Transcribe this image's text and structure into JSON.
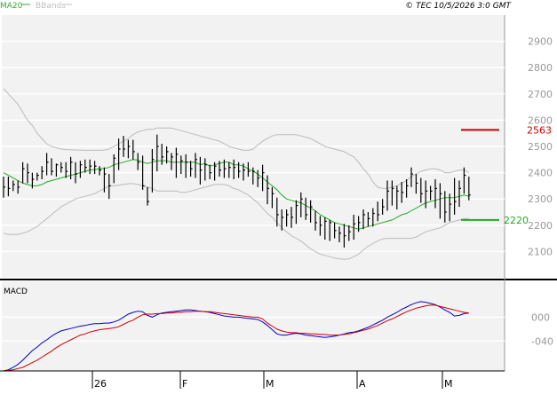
{
  "header": {
    "legend": [
      {
        "name": "MA20",
        "color": "#33aa33"
      },
      {
        "name": "BBands",
        "color": "#c0c0c0"
      }
    ],
    "credit": "© TEC 10/5/2026 3:0 GMT"
  },
  "colors": {
    "price_bars": "#000000",
    "ma20": "#22aa22",
    "bbands": "#bbbbbb",
    "panel_bg": "#f2f2f2",
    "grid": "#ffffff",
    "resistance": "#cc0000",
    "support": "#22aa22",
    "macd_line": "#0000cc",
    "signal_line": "#cc0000"
  },
  "chart_data": [
    {
      "type": "ohlc",
      "name": "price",
      "ylim": [
        2000,
        3000
      ],
      "yticks": [
        "2100",
        "2200",
        "2300",
        "2400",
        "2500",
        "2600",
        "2700",
        "2800",
        "2900"
      ],
      "x_labels": [
        "26",
        "F",
        "M",
        "A",
        "M"
      ],
      "close": [
        2345,
        2340,
        2355,
        2345,
        2415,
        2400,
        2375,
        2390,
        2405,
        2440,
        2405,
        2430,
        2420,
        2405,
        2440,
        2395,
        2430,
        2420,
        2425,
        2425,
        2410,
        2395,
        2350,
        2455,
        2490,
        2490,
        2500,
        2480,
        2440,
        2350,
        2290,
        2450,
        2500,
        2460,
        2480,
        2460,
        2470,
        2445,
        2440,
        2415,
        2450,
        2410,
        2430,
        2400,
        2425,
        2410,
        2415,
        2420,
        2420,
        2405,
        2410,
        2405,
        2405,
        2380,
        2400,
        2340,
        2320,
        2240,
        2230,
        2240,
        2230,
        2275,
        2300,
        2240,
        2270,
        2210,
        2200,
        2215,
        2210,
        2180,
        2170,
        2160,
        2175,
        2205,
        2210,
        2240,
        2225,
        2245,
        2240,
        2270,
        2330,
        2340,
        2330,
        2325,
        2350,
        2395,
        2360,
        2320,
        2330,
        2330,
        2340,
        2320,
        2250,
        2280,
        2290,
        2340,
        2390,
        2315
      ],
      "high": [
        2385,
        2385,
        2370,
        2370,
        2440,
        2435,
        2400,
        2400,
        2425,
        2475,
        2455,
        2435,
        2440,
        2440,
        2460,
        2440,
        2445,
        2450,
        2450,
        2445,
        2425,
        2420,
        2395,
        2470,
        2530,
        2540,
        2525,
        2525,
        2475,
        2465,
        2345,
        2490,
        2545,
        2510,
        2500,
        2475,
        2495,
        2465,
        2470,
        2445,
        2475,
        2460,
        2455,
        2430,
        2440,
        2445,
        2450,
        2440,
        2450,
        2440,
        2435,
        2440,
        2420,
        2410,
        2430,
        2390,
        2345,
        2305,
        2260,
        2260,
        2270,
        2295,
        2325,
        2305,
        2295,
        2255,
        2235,
        2230,
        2220,
        2210,
        2195,
        2205,
        2200,
        2240,
        2235,
        2260,
        2250,
        2265,
        2290,
        2300,
        2370,
        2370,
        2350,
        2365,
        2375,
        2420,
        2395,
        2380,
        2370,
        2350,
        2375,
        2360,
        2330,
        2320,
        2380,
        2370,
        2420,
        2385
      ],
      "low": [
        2305,
        2310,
        2330,
        2320,
        2360,
        2360,
        2340,
        2370,
        2375,
        2390,
        2390,
        2385,
        2400,
        2380,
        2375,
        2360,
        2380,
        2400,
        2395,
        2395,
        2390,
        2325,
        2300,
        2360,
        2410,
        2460,
        2455,
        2450,
        2410,
        2335,
        2275,
        2325,
        2405,
        2430,
        2435,
        2410,
        2380,
        2395,
        2380,
        2385,
        2380,
        2355,
        2370,
        2375,
        2370,
        2385,
        2380,
        2380,
        2375,
        2380,
        2370,
        2385,
        2355,
        2345,
        2330,
        2280,
        2265,
        2195,
        2180,
        2195,
        2190,
        2205,
        2230,
        2220,
        2210,
        2180,
        2160,
        2145,
        2140,
        2150,
        2135,
        2115,
        2140,
        2145,
        2175,
        2185,
        2195,
        2195,
        2215,
        2240,
        2255,
        2275,
        2260,
        2285,
        2305,
        2345,
        2320,
        2285,
        2265,
        2295,
        2265,
        2225,
        2210,
        2215,
        2240,
        2270,
        2320,
        2295
      ],
      "ma20": [
        2400,
        2390,
        2380,
        2370,
        2360,
        2355,
        2350,
        2350,
        2355,
        2365,
        2370,
        2375,
        2380,
        2385,
        2390,
        2395,
        2400,
        2405,
        2410,
        2412,
        2415,
        2417,
        2420,
        2430,
        2435,
        2440,
        2445,
        2450,
        2448,
        2440,
        2435,
        2440,
        2445,
        2445,
        2445,
        2440,
        2440,
        2440,
        2440,
        2440,
        2440,
        2430,
        2435,
        2425,
        2430,
        2435,
        2440,
        2440,
        2430,
        2430,
        2425,
        2415,
        2405,
        2395,
        2380,
        2365,
        2350,
        2335,
        2315,
        2300,
        2295,
        2290,
        2285,
        2275,
        2265,
        2255,
        2240,
        2230,
        2220,
        2210,
        2205,
        2200,
        2195,
        2190,
        2185,
        2190,
        2195,
        2200,
        2205,
        2210,
        2215,
        2220,
        2230,
        2240,
        2245,
        2255,
        2265,
        2275,
        2285,
        2290,
        2295,
        2300,
        2305,
        2305,
        2305,
        2310,
        2315,
        2310
      ],
      "bb_upper": [
        2720,
        2700,
        2680,
        2660,
        2630,
        2600,
        2580,
        2550,
        2530,
        2510,
        2500,
        2495,
        2490,
        2488,
        2487,
        2486,
        2486,
        2485,
        2485,
        2485,
        2485,
        2486,
        2490,
        2500,
        2510,
        2520,
        2530,
        2545,
        2555,
        2560,
        2565,
        2565,
        2570,
        2570,
        2570,
        2570,
        2565,
        2560,
        2555,
        2550,
        2545,
        2540,
        2535,
        2530,
        2525,
        2520,
        2510,
        2500,
        2495,
        2490,
        2485,
        2485,
        2490,
        2505,
        2520,
        2530,
        2540,
        2545,
        2545,
        2545,
        2545,
        2545,
        2540,
        2535,
        2530,
        2520,
        2510,
        2500,
        2495,
        2490,
        2485,
        2480,
        2470,
        2460,
        2440,
        2415,
        2395,
        2365,
        2345,
        2340,
        2340,
        2345,
        2350,
        2360,
        2370,
        2385,
        2395,
        2405,
        2410,
        2415,
        2415,
        2410,
        2400,
        2400,
        2405,
        2410,
        2410,
        2400
      ],
      "bb_lower": [
        2170,
        2165,
        2165,
        2165,
        2170,
        2175,
        2185,
        2195,
        2210,
        2225,
        2240,
        2255,
        2270,
        2280,
        2290,
        2300,
        2305,
        2310,
        2315,
        2320,
        2330,
        2340,
        2350,
        2350,
        2352,
        2355,
        2358,
        2358,
        2355,
        2350,
        2345,
        2340,
        2330,
        2330,
        2330,
        2330,
        2330,
        2325,
        2325,
        2330,
        2335,
        2340,
        2345,
        2350,
        2355,
        2355,
        2355,
        2350,
        2340,
        2335,
        2325,
        2315,
        2300,
        2285,
        2265,
        2245,
        2230,
        2210,
        2190,
        2175,
        2160,
        2150,
        2140,
        2125,
        2110,
        2100,
        2090,
        2085,
        2080,
        2075,
        2072,
        2070,
        2072,
        2080,
        2090,
        2105,
        2120,
        2130,
        2140,
        2148,
        2150,
        2150,
        2150,
        2150,
        2150,
        2150,
        2155,
        2165,
        2175,
        2180,
        2185,
        2190,
        2200,
        2210,
        2215,
        2220,
        2225,
        2225
      ],
      "annotations": [
        {
          "label": "2563",
          "value": 2563,
          "color": "#cc0000"
        },
        {
          "label": "2220",
          "value": 2220,
          "color": "#22aa22"
        }
      ]
    },
    {
      "type": "line",
      "name": "MACD",
      "title": "MACD",
      "ylim": [
        -90,
        60
      ],
      "yticks": [
        "000",
        "-040"
      ],
      "series": [
        {
          "values": [
            -90,
            -88,
            -84,
            -79,
            -72,
            -64,
            -56,
            -50,
            -43,
            -38,
            -32,
            -27,
            -23,
            -21,
            -19,
            -17,
            -15,
            -14,
            -12,
            -11,
            -11,
            -10,
            -10,
            -8,
            -5,
            0,
            5,
            8,
            10,
            9,
            3,
            0,
            4,
            7,
            8,
            9,
            10,
            11,
            12,
            12,
            11,
            10,
            9,
            8,
            6,
            4,
            2,
            1,
            0,
            0,
            -1,
            -2,
            -3,
            -4,
            -8,
            -14,
            -21,
            -28,
            -30,
            -30,
            -28,
            -27,
            -28,
            -30,
            -31,
            -32,
            -33,
            -34,
            -33,
            -32,
            -30,
            -28,
            -26,
            -25,
            -23,
            -20,
            -17,
            -13,
            -9,
            -5,
            0,
            4,
            8,
            13,
            17,
            21,
            24,
            26,
            25,
            23,
            21,
            17,
            12,
            8,
            2,
            3,
            6,
            7
          ]
        },
        {
          "values": [
            -90,
            -89,
            -88,
            -86,
            -84,
            -80,
            -76,
            -72,
            -67,
            -62,
            -57,
            -51,
            -46,
            -42,
            -38,
            -34,
            -30,
            -28,
            -25,
            -23,
            -21,
            -20,
            -19,
            -18,
            -16,
            -12,
            -8,
            -5,
            0,
            4,
            5,
            5,
            6,
            6,
            7,
            7,
            8,
            8,
            9,
            9,
            10,
            10,
            9,
            9,
            8,
            7,
            6,
            5,
            4,
            3,
            2,
            1,
            0,
            0,
            -3,
            -10,
            -15,
            -20,
            -23,
            -25,
            -26,
            -26,
            -27,
            -27,
            -28,
            -28,
            -29,
            -29,
            -30,
            -30,
            -30,
            -29,
            -28,
            -26,
            -24,
            -22,
            -20,
            -17,
            -14,
            -10,
            -6,
            -3,
            1,
            5,
            9,
            12,
            15,
            17,
            19,
            20,
            20,
            18,
            16,
            14,
            12,
            10,
            8,
            7
          ]
        }
      ]
    }
  ]
}
